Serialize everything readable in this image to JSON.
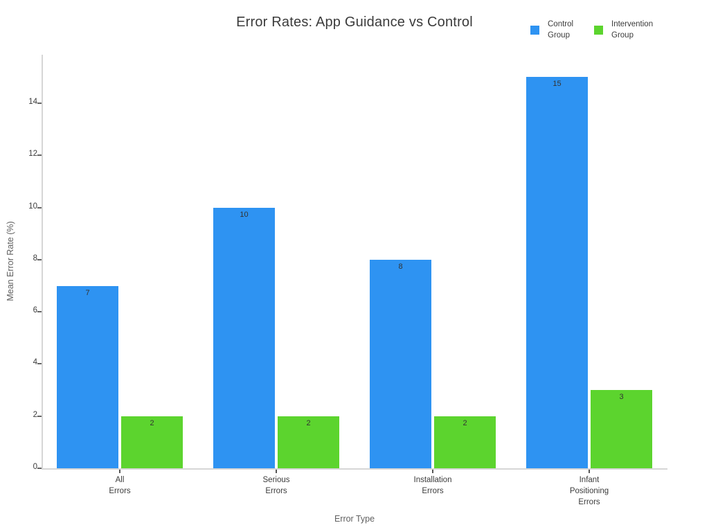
{
  "chart_data": {
    "type": "bar",
    "title": "Error Rates: App Guidance vs Control",
    "xlabel": "Error Type",
    "ylabel": "Mean Error Rate (%)",
    "categories": [
      "All\nErrors",
      "Serious\nErrors",
      "Installation\nErrors",
      "Infant\nPositioning\nErrors"
    ],
    "series": [
      {
        "name": "Control Group",
        "color": "#2e93f2",
        "values": [
          7,
          10,
          8,
          15
        ]
      },
      {
        "name": "Intervention Group",
        "color": "#5cd42e",
        "values": [
          2,
          2,
          2,
          3
        ]
      }
    ],
    "yticks": [
      0,
      2,
      4,
      6,
      8,
      10,
      12,
      14
    ],
    "ylim": [
      0,
      15.9
    ],
    "grid": false,
    "legend_position": "top-right",
    "value_labels_inside_bar_top": true
  },
  "colors": {
    "background": "#ffffff",
    "control_bar": "#2e93f2",
    "intervention_bar": "#5cd42e",
    "axis_spine": "#d6d6d6",
    "tick_mark": "#555555",
    "tick_label": "#3b3b3b",
    "axis_title": "#606060",
    "chart_title": "#3b3b3b",
    "bar_value_label": "#333333"
  }
}
